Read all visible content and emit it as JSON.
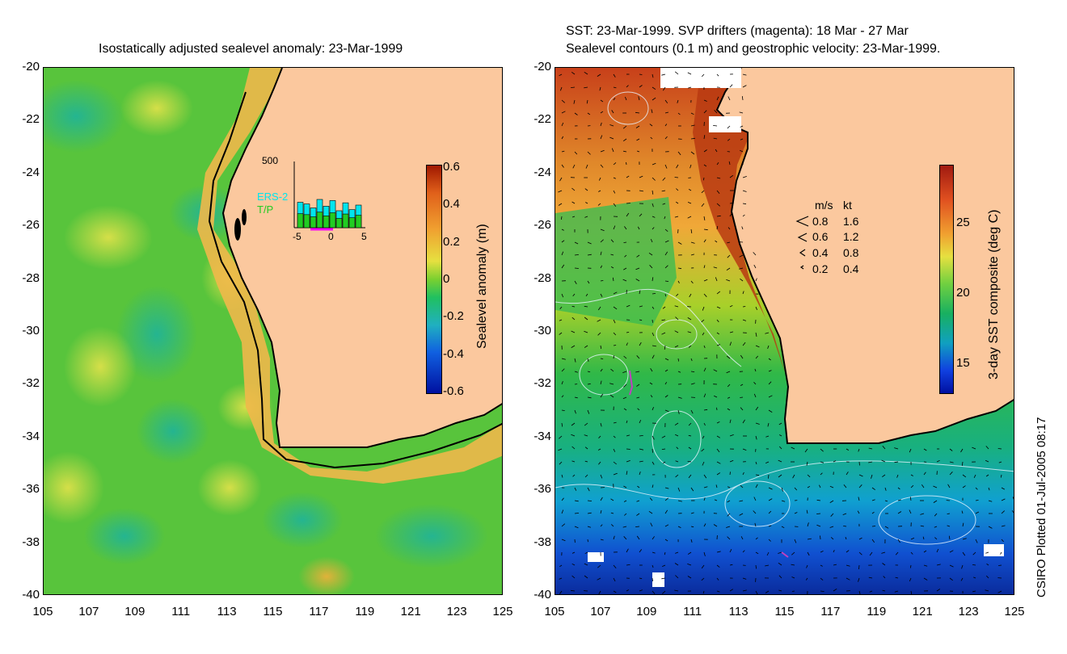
{
  "left_panel": {
    "title": "Isostatically adjusted sealevel anomaly: 23-Mar-1999",
    "colorbar_label": "Sealevel anomaly (m)",
    "colorbar_ticks": [
      "0.6",
      "0.4",
      "0.2",
      "0",
      "-0.2",
      "-0.4",
      "-0.6"
    ],
    "inset": {
      "y_max_label": "500",
      "series_labels": [
        "ERS-2",
        "T/P"
      ],
      "x_ticks": [
        "-5",
        "0",
        "5"
      ],
      "colors": {
        "ers2": "#00e5ee",
        "tp": "#22cc22",
        "drift": "#ff00ff"
      }
    }
  },
  "right_panel": {
    "title_line1": "SST: 23-Mar-1999. SVP drifters (magenta): 18 Mar - 27 Mar",
    "title_line2": "Sealevel contours (0.1 m) and geostrophic velocity: 23-Mar-1999.",
    "colorbar_label": "3-day SST composite (deg C)",
    "colorbar_ticks": [
      "25",
      "20",
      "15"
    ],
    "legend": {
      "header_ms": "m/s",
      "header_kt": "kt",
      "rows": [
        {
          "ms": "0.8",
          "kt": "1.6"
        },
        {
          "ms": "0.6",
          "kt": "1.2"
        },
        {
          "ms": "0.4",
          "kt": "0.8"
        },
        {
          "ms": "0.2",
          "kt": "0.4"
        }
      ]
    }
  },
  "axes": {
    "y_ticks": [
      "-20",
      "-22",
      "-24",
      "-26",
      "-28",
      "-30",
      "-32",
      "-34",
      "-36",
      "-38",
      "-40"
    ],
    "x_ticks": [
      "105",
      "107",
      "109",
      "111",
      "113",
      "115",
      "117",
      "119",
      "121",
      "123",
      "125"
    ]
  },
  "credit": "CSIRO Plotted 01-Jul-2005 08:17",
  "colors": {
    "land": "#fbc89e",
    "ocean_green": "#56c83a",
    "coast": "#000000"
  }
}
